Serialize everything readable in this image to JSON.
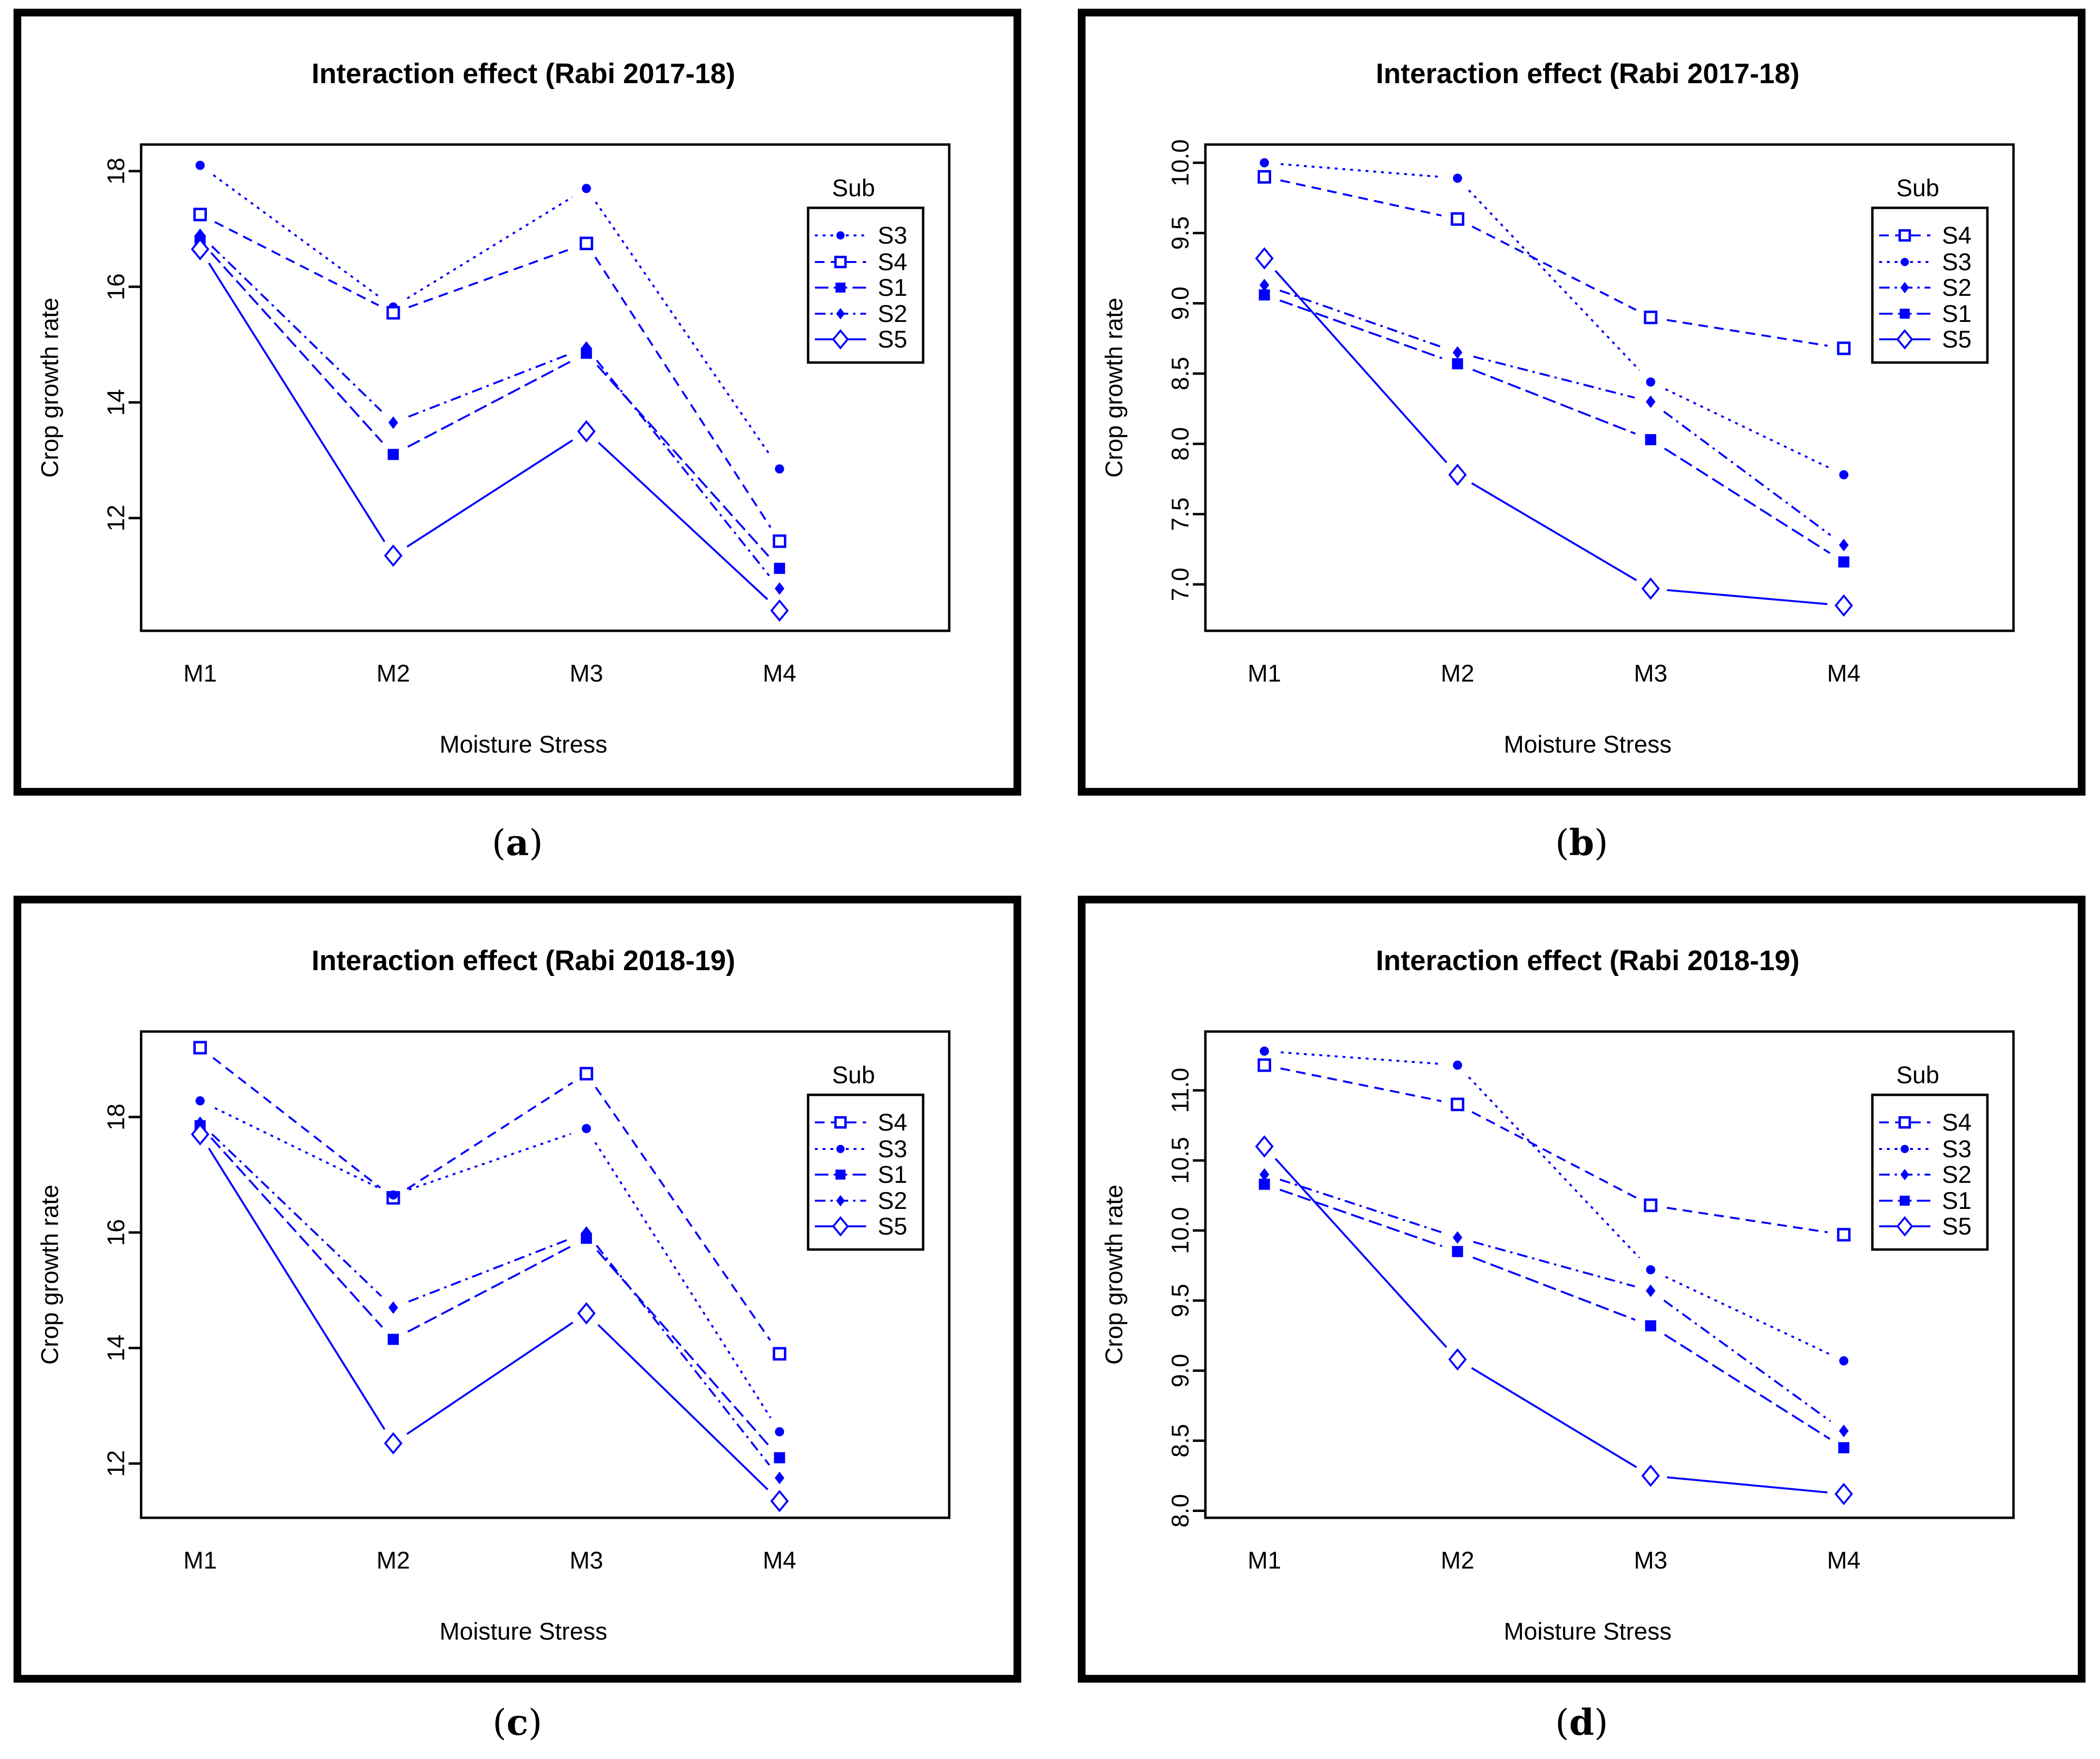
{
  "page": {
    "background": "#ffffff",
    "captions": [
      {
        "open": "(",
        "letter": "a",
        "close": ")"
      },
      {
        "open": "(",
        "letter": "b",
        "close": ")"
      },
      {
        "open": "(",
        "letter": "c",
        "close": ")"
      },
      {
        "open": "(",
        "letter": "d",
        "close": ")"
      }
    ]
  },
  "colors": {
    "series_blue": "#0000ff",
    "axis_black": "#000000",
    "panel_border": "#000000"
  },
  "chart_data": [
    {
      "type": "line",
      "panel": "a",
      "title": "Interaction effect (Rabi 2017-18)",
      "xlabel": "Moisture Stress",
      "ylabel": "Crop growth rate",
      "categories": [
        "M1",
        "M2",
        "M3",
        "M4"
      ],
      "yticks": [
        12,
        14,
        16,
        18
      ],
      "ytick_labels": [
        "12",
        "14",
        "16",
        "18"
      ],
      "ylim": [
        10.05,
        18.46
      ],
      "grid": false,
      "legend_position": "inside-right",
      "legend_title": "Sub",
      "series": [
        {
          "name": "S3",
          "line": "dotted",
          "marker": "circle-filled",
          "values": [
            18.1,
            15.65,
            17.7,
            12.85
          ]
        },
        {
          "name": "S4",
          "line": "dashed",
          "marker": "square-open",
          "values": [
            17.25,
            15.55,
            16.75,
            11.6
          ]
        },
        {
          "name": "S1",
          "line": "longdash",
          "marker": "square-filled",
          "values": [
            16.8,
            13.1,
            14.85,
            11.13
          ]
        },
        {
          "name": "S2",
          "line": "dashdot",
          "marker": "diamond-filled",
          "values": [
            16.9,
            13.65,
            14.95,
            10.78
          ]
        },
        {
          "name": "S5",
          "line": "solid",
          "marker": "diamond-open",
          "values": [
            16.65,
            11.35,
            13.5,
            10.4
          ]
        }
      ]
    },
    {
      "type": "line",
      "panel": "b",
      "title": "Interaction effect (Rabi 2017-18)",
      "xlabel": "Moisture Stress",
      "ylabel": "Crop growth rate",
      "categories": [
        "M1",
        "M2",
        "M3",
        "M4"
      ],
      "yticks": [
        7.0,
        7.5,
        8.0,
        8.5,
        9.0,
        9.5,
        10.0
      ],
      "ytick_labels": [
        "7.0",
        "7.5",
        "8.0",
        "8.5",
        "9.0",
        "9.5",
        "10.0"
      ],
      "ylim": [
        6.67,
        10.13
      ],
      "grid": false,
      "legend_position": "inside-right",
      "legend_title": "Sub",
      "series": [
        {
          "name": "S4",
          "line": "dashed",
          "marker": "square-open",
          "values": [
            9.9,
            9.6,
            8.9,
            8.68
          ]
        },
        {
          "name": "S3",
          "line": "dotted",
          "marker": "circle-filled",
          "values": [
            10.0,
            9.89,
            8.44,
            7.78
          ]
        },
        {
          "name": "S2",
          "line": "dashdot",
          "marker": "diamond-filled",
          "values": [
            9.13,
            8.65,
            8.3,
            7.28
          ]
        },
        {
          "name": "S1",
          "line": "longdash",
          "marker": "square-filled",
          "values": [
            9.06,
            8.57,
            8.03,
            7.16
          ]
        },
        {
          "name": "S5",
          "line": "solid",
          "marker": "diamond-open",
          "values": [
            9.32,
            7.78,
            6.97,
            6.85
          ]
        }
      ]
    },
    {
      "type": "line",
      "panel": "c",
      "title": "Interaction effect (Rabi 2018-19)",
      "xlabel": "Moisture Stress",
      "ylabel": "Crop growth rate",
      "categories": [
        "M1",
        "M2",
        "M3",
        "M4"
      ],
      "yticks": [
        12,
        14,
        16,
        18
      ],
      "ytick_labels": [
        "12",
        "14",
        "16",
        "18"
      ],
      "ylim": [
        11.06,
        19.48
      ],
      "grid": false,
      "legend_position": "inside-right",
      "legend_title": "Sub",
      "series": [
        {
          "name": "S4",
          "line": "dashed",
          "marker": "square-open",
          "values": [
            19.2,
            16.6,
            18.75,
            13.9
          ]
        },
        {
          "name": "S3",
          "line": "dotted",
          "marker": "circle-filled",
          "values": [
            18.28,
            16.65,
            17.8,
            12.55
          ]
        },
        {
          "name": "S1",
          "line": "longdash",
          "marker": "square-filled",
          "values": [
            17.85,
            14.15,
            15.9,
            12.1
          ]
        },
        {
          "name": "S2",
          "line": "dashdot",
          "marker": "diamond-filled",
          "values": [
            17.9,
            14.7,
            16.0,
            11.75
          ]
        },
        {
          "name": "S5",
          "line": "solid",
          "marker": "diamond-open",
          "values": [
            17.7,
            12.35,
            14.6,
            11.35
          ]
        }
      ]
    },
    {
      "type": "line",
      "panel": "d",
      "title": "Interaction effect (Rabi 2018-19)",
      "xlabel": "Moisture Stress",
      "ylabel": "Crop growth rate",
      "categories": [
        "M1",
        "M2",
        "M3",
        "M4"
      ],
      "yticks": [
        8.0,
        8.5,
        9.0,
        9.5,
        10.0,
        10.5,
        11.0
      ],
      "ytick_labels": [
        "8.0",
        "8.5",
        "9.0",
        "9.5",
        "10.0",
        "10.5",
        "11.0"
      ],
      "ylim": [
        7.95,
        11.42
      ],
      "grid": false,
      "legend_position": "inside-right",
      "legend_title": "Sub",
      "series": [
        {
          "name": "S4",
          "line": "dashed",
          "marker": "square-open",
          "values": [
            11.18,
            10.9,
            10.18,
            9.97
          ]
        },
        {
          "name": "S3",
          "line": "dotted",
          "marker": "circle-filled",
          "values": [
            11.28,
            11.18,
            9.72,
            9.07
          ]
        },
        {
          "name": "S2",
          "line": "dashdot",
          "marker": "diamond-filled",
          "values": [
            10.4,
            9.95,
            9.57,
            8.57
          ]
        },
        {
          "name": "S1",
          "line": "longdash",
          "marker": "square-filled",
          "values": [
            10.33,
            9.85,
            9.32,
            8.45
          ]
        },
        {
          "name": "S5",
          "line": "solid",
          "marker": "diamond-open",
          "values": [
            10.6,
            9.08,
            8.25,
            8.12
          ]
        }
      ]
    }
  ]
}
